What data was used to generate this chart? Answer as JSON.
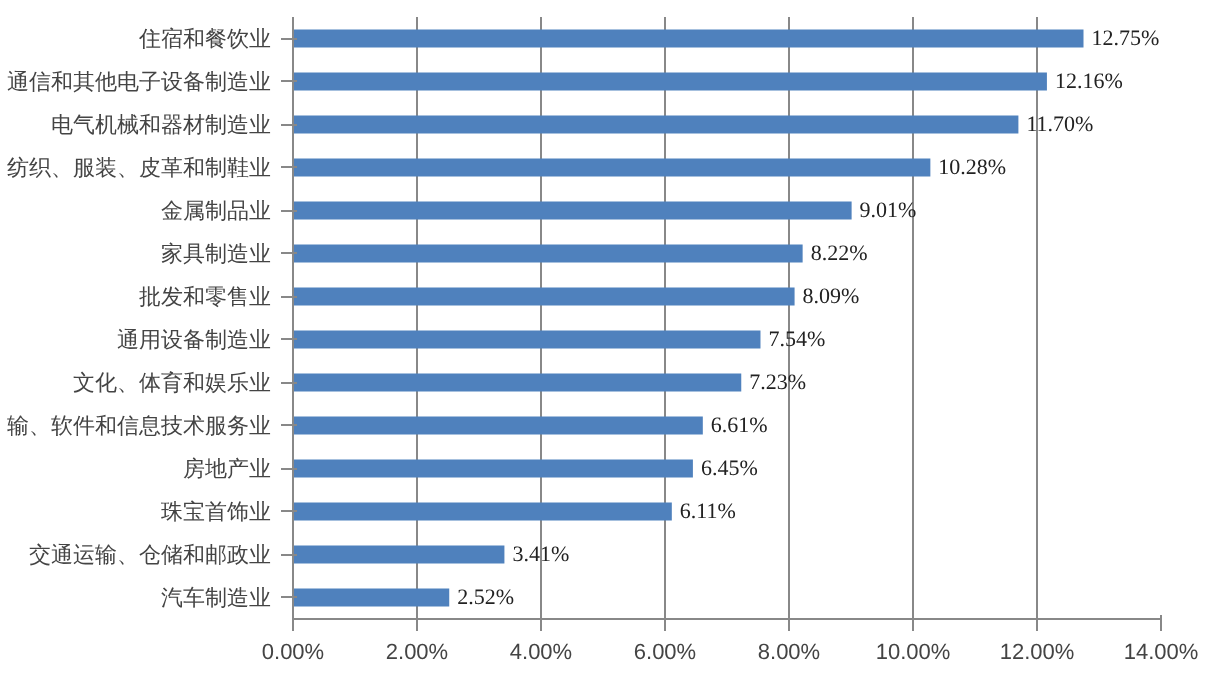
{
  "chart_data": {
    "type": "bar",
    "orientation": "horizontal",
    "categories": [
      "住宿和餐饮业",
      "通信和其他电子设备制造业",
      "电气机械和器材制造业",
      "纺织、服装、皮革和制鞋业",
      "金属制品业",
      "家具制造业",
      "批发和零售业",
      "通用设备制造业",
      "文化、体育和娱乐业",
      "输、软件和信息技术服务业",
      "房地产业",
      "珠宝首饰业",
      "交通运输、仓储和邮政业",
      "汽车制造业"
    ],
    "values": [
      12.75,
      12.16,
      11.7,
      10.28,
      9.01,
      8.22,
      8.09,
      7.54,
      7.23,
      6.61,
      6.45,
      6.11,
      3.41,
      2.52
    ],
    "value_labels": [
      "12.75%",
      "12.16%",
      "11.70%",
      "10.28%",
      "9.01%",
      "8.22%",
      "8.09%",
      "7.54%",
      "7.23%",
      "6.61%",
      "6.45%",
      "6.11%",
      "3.41%",
      "2.52%"
    ],
    "color": "#4f81bd",
    "xlim": [
      0,
      14
    ],
    "xticks": [
      {
        "value": 0,
        "label": "0.00%"
      },
      {
        "value": 2,
        "label": "2.00%"
      },
      {
        "value": 4,
        "label": "4.00%"
      },
      {
        "value": 6,
        "label": "6.00%"
      },
      {
        "value": 8,
        "label": "8.00%"
      },
      {
        "value": 10,
        "label": "10.00%"
      },
      {
        "value": 12,
        "label": "12.00%"
      },
      {
        "value": 14,
        "label": "14.00%"
      }
    ],
    "grid": "x"
  }
}
